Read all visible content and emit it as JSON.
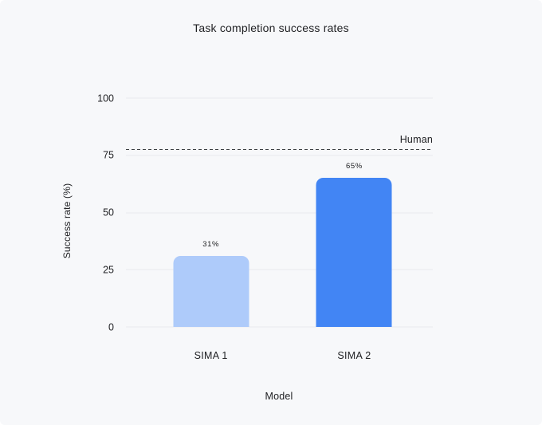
{
  "card": {
    "background": "#f7f8fa"
  },
  "chart_data": {
    "type": "bar",
    "title": "Task completion success rates",
    "xlabel": "Model",
    "ylabel": "Success rate (%)",
    "categories": [
      "SIMA 1",
      "SIMA 2"
    ],
    "values": [
      31,
      65
    ],
    "value_labels": [
      "31%",
      "65%"
    ],
    "bar_colors": [
      "#aecbfa",
      "#4285f4"
    ],
    "ylim": [
      0,
      100
    ],
    "yticks": [
      0,
      25,
      50,
      75,
      100
    ],
    "grid": "horizontal",
    "gridline_color": "#e8eaed",
    "legend": "none",
    "reference_line": {
      "label": "Human",
      "value": 77.5,
      "style": "dashed",
      "color": "#3c4043"
    }
  }
}
